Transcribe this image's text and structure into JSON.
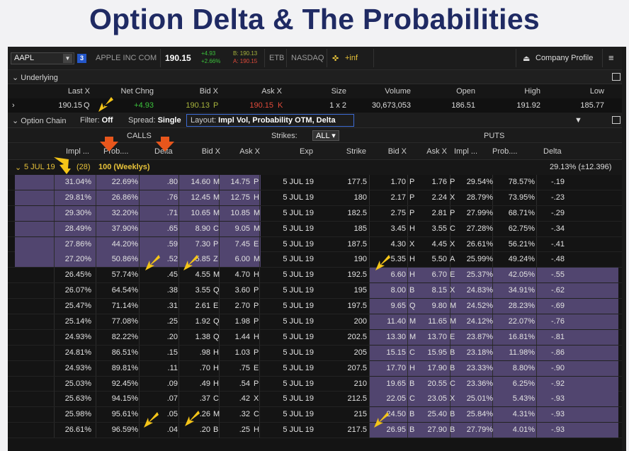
{
  "slide_title": "Option Delta & The Probabilities",
  "quote": {
    "symbol": "AAPL",
    "link_num": "3",
    "company": "APPLE INC COM",
    "last": "190.15",
    "chg": "+4.93",
    "chg_pct": "+2.66%",
    "bid": "B: 190.13",
    "ask": "A: 190.15",
    "etb": "ETB",
    "exchange": "NASDAQ",
    "inf": "+inf",
    "profile_label": "Company Profile",
    "menu_icon": "hamburger-icon"
  },
  "underlying": {
    "label": "Underlying",
    "headers": [
      "Last X",
      "Net Chng",
      "Bid X",
      "Ask X",
      "Size",
      "Volume",
      "Open",
      "High",
      "Low"
    ],
    "last": "190.15",
    "last_x": "Q",
    "net": "+4.93",
    "bid": "190.13",
    "bid_x": "P",
    "ask": "190.15",
    "ask_x": "K",
    "size": "1 x 2",
    "volume": "30,673,053",
    "open": "186.51",
    "high": "191.92",
    "low": "185.77"
  },
  "chain_bar": {
    "label": "Option Chain",
    "filter_label": "Filter:",
    "filter_value": "Off",
    "spread_label": "Spread:",
    "spread_value": "Single",
    "layout_label": "Layout:",
    "layout_value": "Impl Vol, Probability OTM, Delta"
  },
  "calls_label": "CALLS",
  "puts_label": "PUTS",
  "strikes_label": "Strikes:",
  "strikes_value": "ALL",
  "call_headers": [
    "Impl ...",
    "Prob....",
    "Delta",
    "Bid X",
    "Ask X"
  ],
  "mid_headers": [
    "Exp",
    "Strike"
  ],
  "put_headers": [
    "Bid X",
    "Ask X",
    "Impl ...",
    "Prob....",
    "Delta"
  ],
  "expiry": {
    "label": "5 JUL 19",
    "count": "(28)",
    "series": "100 (Weeklys)",
    "iv": "29.13% (±12.396)"
  },
  "rows": [
    {
      "civ": "31.04%",
      "cprob": "22.69%",
      "cdelta": ".80",
      "cbid": "14.60",
      "cbx": "M",
      "cask": "14.75",
      "cax": "P",
      "exp": "5 JUL 19",
      "strike": "177.5",
      "pbid": "1.70",
      "pbx": "P",
      "pask": "1.76",
      "pax": "P",
      "piv": "29.54%",
      "pprob": "78.57%",
      "pdelta": "-.19",
      "citm": true,
      "pitm": false
    },
    {
      "civ": "29.81%",
      "cprob": "26.86%",
      "cdelta": ".76",
      "cbid": "12.45",
      "cbx": "M",
      "cask": "12.75",
      "cax": "H",
      "exp": "5 JUL 19",
      "strike": "180",
      "pbid": "2.17",
      "pbx": "P",
      "pask": "2.24",
      "pax": "X",
      "piv": "28.79%",
      "pprob": "73.95%",
      "pdelta": "-.23",
      "citm": true,
      "pitm": false
    },
    {
      "civ": "29.30%",
      "cprob": "32.20%",
      "cdelta": ".71",
      "cbid": "10.65",
      "cbx": "M",
      "cask": "10.85",
      "cax": "M",
      "exp": "5 JUL 19",
      "strike": "182.5",
      "pbid": "2.75",
      "pbx": "P",
      "pask": "2.81",
      "pax": "P",
      "piv": "27.99%",
      "pprob": "68.71%",
      "pdelta": "-.29",
      "citm": true,
      "pitm": false
    },
    {
      "civ": "28.49%",
      "cprob": "37.90%",
      "cdelta": ".65",
      "cbid": "8.90",
      "cbx": "C",
      "cask": "9.05",
      "cax": "M",
      "exp": "5 JUL 19",
      "strike": "185",
      "pbid": "3.45",
      "pbx": "H",
      "pask": "3.55",
      "pax": "C",
      "piv": "27.28%",
      "pprob": "62.75%",
      "pdelta": "-.34",
      "citm": true,
      "pitm": false
    },
    {
      "civ": "27.86%",
      "cprob": "44.20%",
      "cdelta": ".59",
      "cbid": "7.30",
      "cbx": "P",
      "cask": "7.45",
      "cax": "E",
      "exp": "5 JUL 19",
      "strike": "187.5",
      "pbid": "4.30",
      "pbx": "X",
      "pask": "4.45",
      "pax": "X",
      "piv": "26.61%",
      "pprob": "56.21%",
      "pdelta": "-.41",
      "citm": true,
      "pitm": false
    },
    {
      "civ": "27.20%",
      "cprob": "50.86%",
      "cdelta": ".52",
      "cbid": "5.85",
      "cbx": "Z",
      "cask": "6.00",
      "cax": "M",
      "exp": "5 JUL 19",
      "strike": "190",
      "pbid": "5.35",
      "pbx": "H",
      "pask": "5.50",
      "pax": "A",
      "piv": "25.99%",
      "pprob": "49.24%",
      "pdelta": "-.48",
      "citm": true,
      "pitm": false
    },
    {
      "civ": "26.45%",
      "cprob": "57.74%",
      "cdelta": ".45",
      "cbid": "4.55",
      "cbx": "M",
      "cask": "4.70",
      "cax": "H",
      "exp": "5 JUL 19",
      "strike": "192.5",
      "pbid": "6.60",
      "pbx": "H",
      "pask": "6.70",
      "pax": "E",
      "piv": "25.37%",
      "pprob": "42.05%",
      "pdelta": "-.55",
      "citm": false,
      "pitm": true
    },
    {
      "civ": "26.07%",
      "cprob": "64.54%",
      "cdelta": ".38",
      "cbid": "3.55",
      "cbx": "Q",
      "cask": "3.60",
      "cax": "P",
      "exp": "5 JUL 19",
      "strike": "195",
      "pbid": "8.00",
      "pbx": "B",
      "pask": "8.15",
      "pax": "X",
      "piv": "24.83%",
      "pprob": "34.91%",
      "pdelta": "-.62",
      "citm": false,
      "pitm": true
    },
    {
      "civ": "25.47%",
      "cprob": "71.14%",
      "cdelta": ".31",
      "cbid": "2.61",
      "cbx": "E",
      "cask": "2.70",
      "cax": "P",
      "exp": "5 JUL 19",
      "strike": "197.5",
      "pbid": "9.65",
      "pbx": "Q",
      "pask": "9.80",
      "pax": "M",
      "piv": "24.52%",
      "pprob": "28.23%",
      "pdelta": "-.69",
      "citm": false,
      "pitm": true
    },
    {
      "civ": "25.14%",
      "cprob": "77.08%",
      "cdelta": ".25",
      "cbid": "1.92",
      "cbx": "Q",
      "cask": "1.98",
      "cax": "P",
      "exp": "5 JUL 19",
      "strike": "200",
      "pbid": "11.40",
      "pbx": "M",
      "pask": "11.65",
      "pax": "M",
      "piv": "24.12%",
      "pprob": "22.07%",
      "pdelta": "-.76",
      "citm": false,
      "pitm": true
    },
    {
      "civ": "24.93%",
      "cprob": "82.22%",
      "cdelta": ".20",
      "cbid": "1.38",
      "cbx": "Q",
      "cask": "1.44",
      "cax": "H",
      "exp": "5 JUL 19",
      "strike": "202.5",
      "pbid": "13.30",
      "pbx": "M",
      "pask": "13.70",
      "pax": "E",
      "piv": "23.87%",
      "pprob": "16.81%",
      "pdelta": "-.81",
      "citm": false,
      "pitm": true
    },
    {
      "civ": "24.81%",
      "cprob": "86.51%",
      "cdelta": ".15",
      "cbid": ".98",
      "cbx": "H",
      "cask": "1.03",
      "cax": "P",
      "exp": "5 JUL 19",
      "strike": "205",
      "pbid": "15.15",
      "pbx": "C",
      "pask": "15.95",
      "pax": "B",
      "piv": "23.18%",
      "pprob": "11.98%",
      "pdelta": "-.86",
      "citm": false,
      "pitm": true
    },
    {
      "civ": "24.93%",
      "cprob": "89.81%",
      "cdelta": ".11",
      "cbid": ".70",
      "cbx": "H",
      "cask": ".75",
      "cax": "E",
      "exp": "5 JUL 19",
      "strike": "207.5",
      "pbid": "17.70",
      "pbx": "H",
      "pask": "17.90",
      "pax": "B",
      "piv": "23.33%",
      "pprob": "8.80%",
      "pdelta": "-.90",
      "citm": false,
      "pitm": true
    },
    {
      "civ": "25.03%",
      "cprob": "92.45%",
      "cdelta": ".09",
      "cbid": ".49",
      "cbx": "H",
      "cask": ".54",
      "cax": "P",
      "exp": "5 JUL 19",
      "strike": "210",
      "pbid": "19.65",
      "pbx": "B",
      "pask": "20.55",
      "pax": "C",
      "piv": "23.36%",
      "pprob": "6.25%",
      "pdelta": "-.92",
      "citm": false,
      "pitm": true
    },
    {
      "civ": "25.63%",
      "cprob": "94.15%",
      "cdelta": ".07",
      "cbid": ".37",
      "cbx": "C",
      "cask": ".42",
      "cax": "X",
      "exp": "5 JUL 19",
      "strike": "212.5",
      "pbid": "22.05",
      "pbx": "C",
      "pask": "23.05",
      "pax": "X",
      "piv": "25.01%",
      "pprob": "5.43%",
      "pdelta": "-.93",
      "citm": false,
      "pitm": true
    },
    {
      "civ": "25.98%",
      "cprob": "95.61%",
      "cdelta": ".05",
      "cbid": ".26",
      "cbx": "M",
      "cask": ".32",
      "cax": "C",
      "exp": "5 JUL 19",
      "strike": "215",
      "pbid": "24.50",
      "pbx": "B",
      "pask": "25.40",
      "pax": "B",
      "piv": "25.84%",
      "pprob": "4.31%",
      "pdelta": "-.93",
      "citm": false,
      "pitm": true
    },
    {
      "civ": "26.61%",
      "cprob": "96.59%",
      "cdelta": ".04",
      "cbid": ".20",
      "cbx": "B",
      "cask": ".25",
      "cax": "H",
      "exp": "5 JUL 19",
      "strike": "217.5",
      "pbid": "26.95",
      "pbx": "B",
      "pask": "27.90",
      "pax": "B",
      "piv": "27.79%",
      "pprob": "4.01%",
      "pdelta": "-.93",
      "citm": false,
      "pitm": true
    }
  ],
  "colors": {
    "title": "#1f2a63",
    "itm": "#51456f",
    "accent_arrow": "#f5c518",
    "orange_arrow": "#e8561c",
    "up": "#3cc33c",
    "down": "#e04a3a"
  }
}
